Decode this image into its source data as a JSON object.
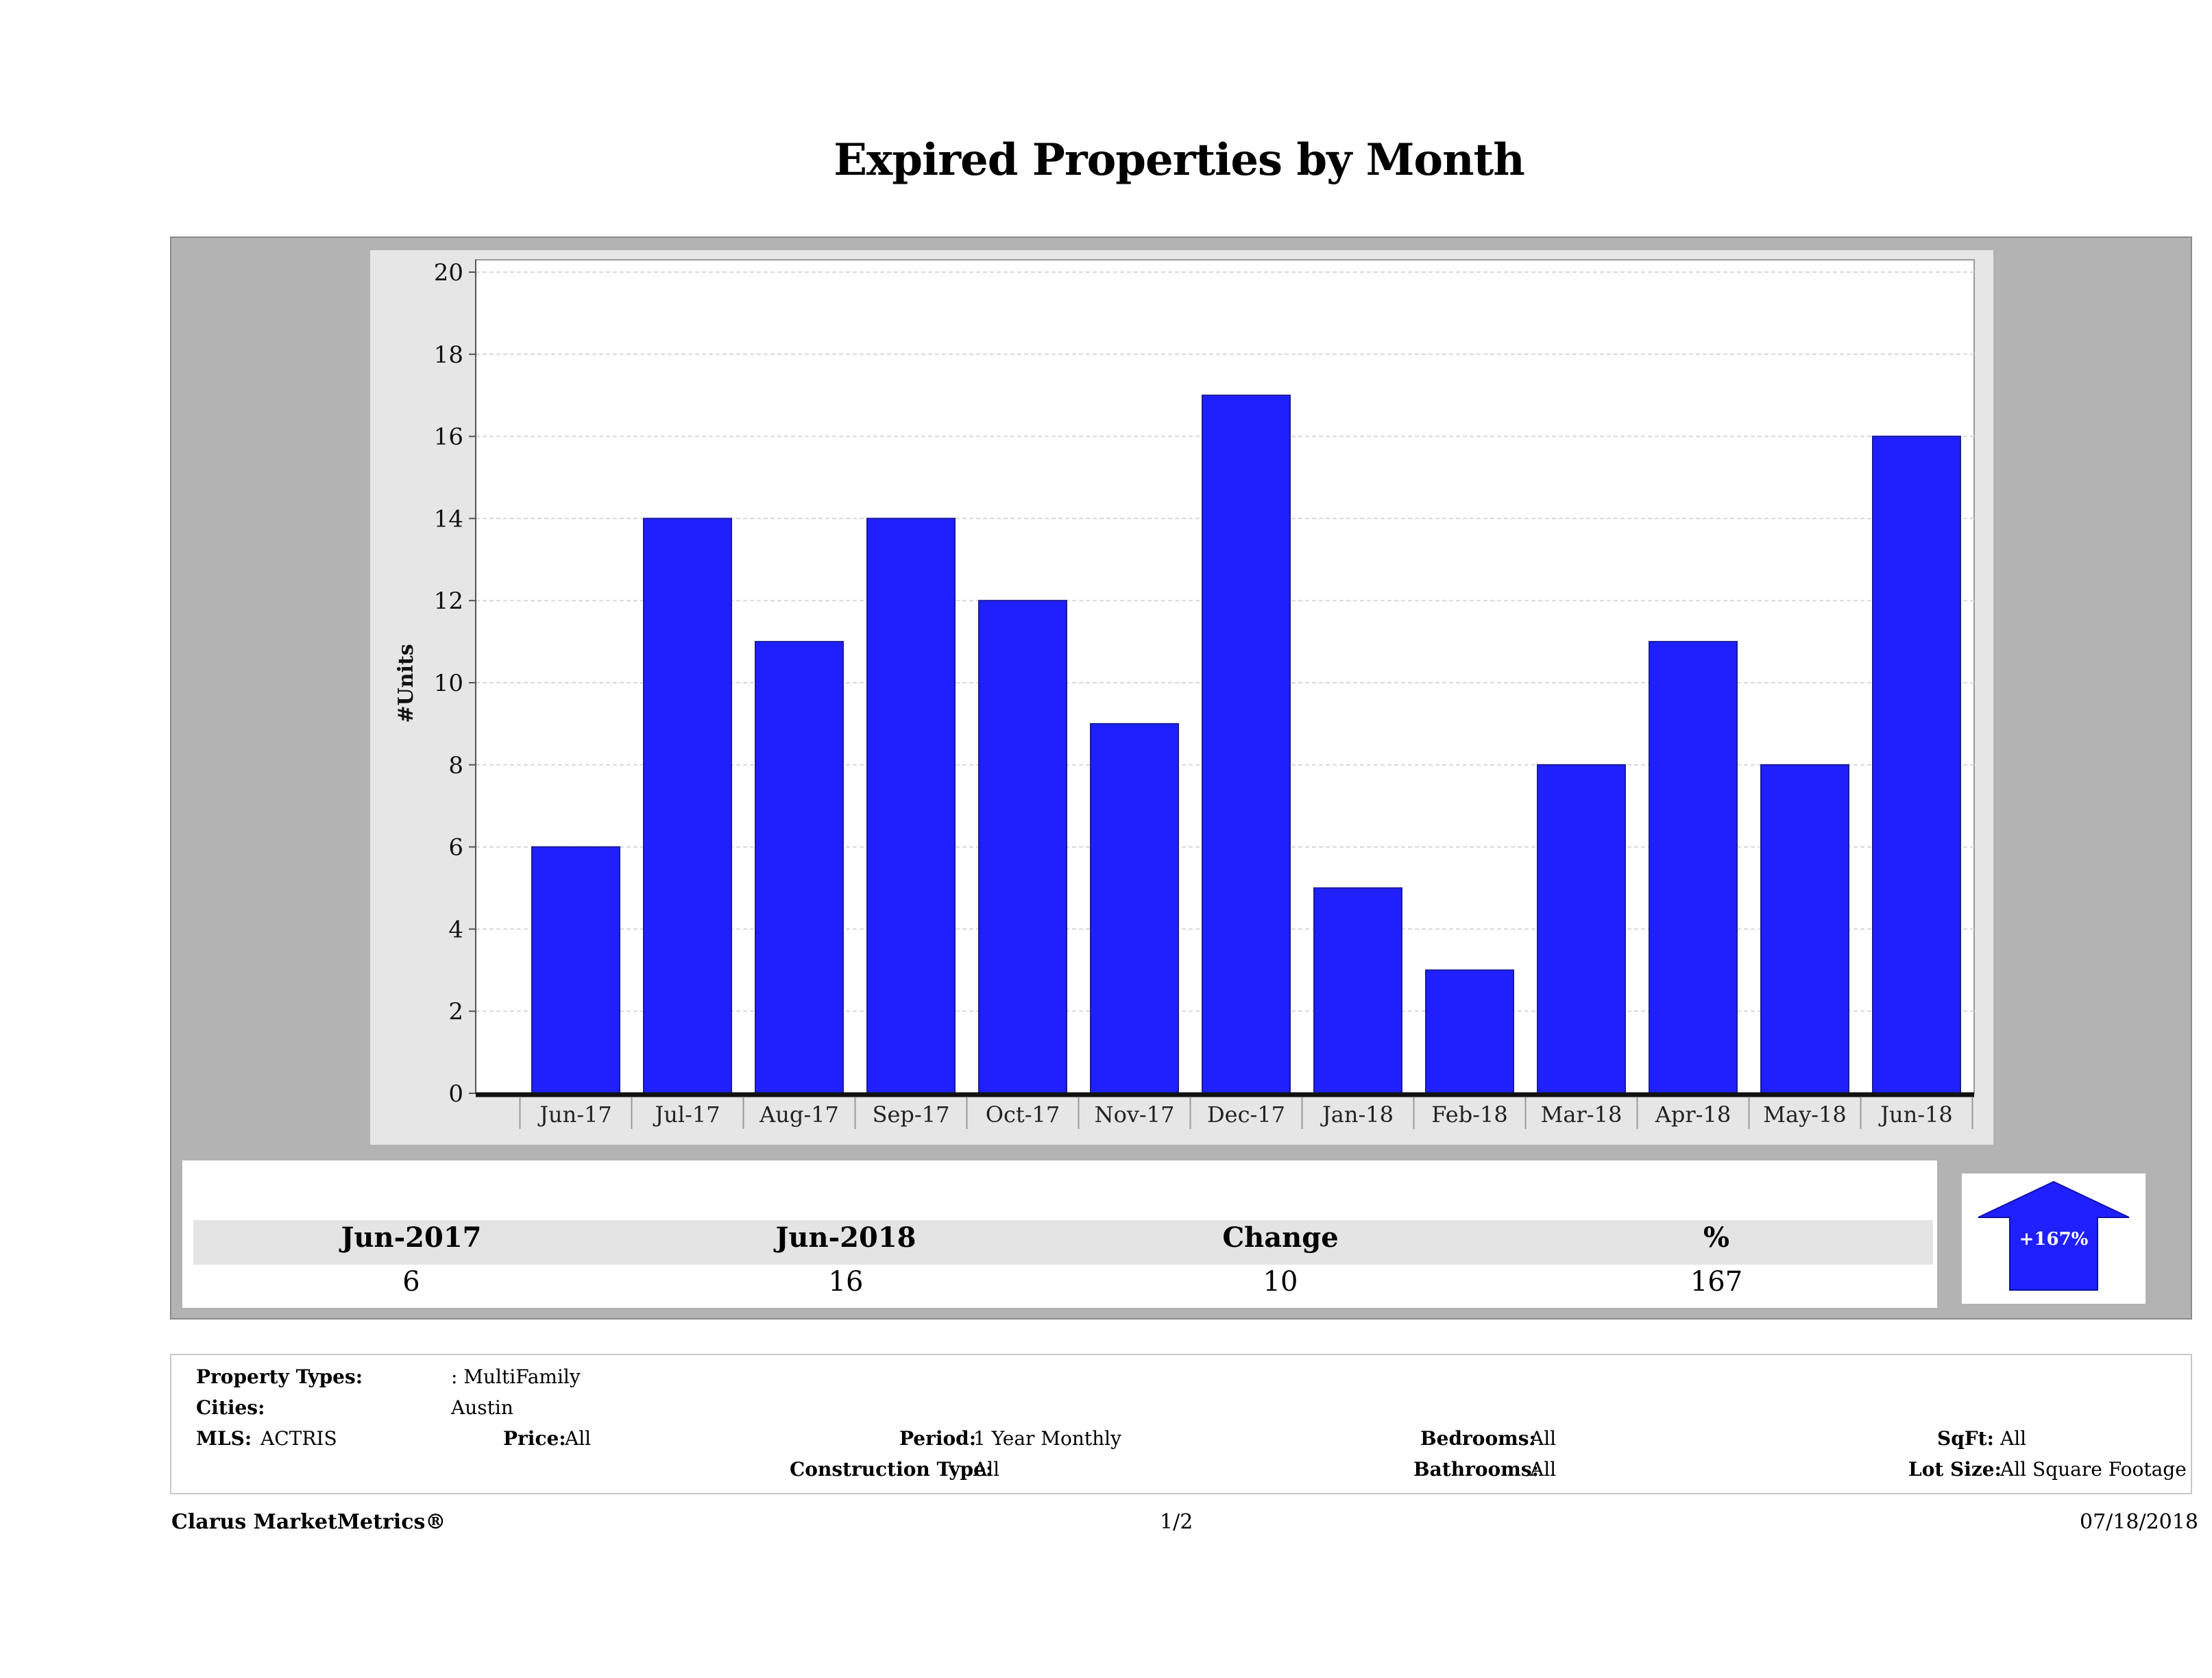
{
  "page": {
    "title": "Expired Properties by Month"
  },
  "chart_data": {
    "type": "bar",
    "title": "Expired Properties by Month",
    "xlabel": "",
    "ylabel": "#Units",
    "ylim": [
      0,
      20
    ],
    "yticks": [
      0,
      2,
      4,
      6,
      8,
      10,
      12,
      14,
      16,
      18,
      20
    ],
    "grid": true,
    "bar_color": "#2020ff",
    "categories": [
      "Jun-17",
      "Jul-17",
      "Aug-17",
      "Sep-17",
      "Oct-17",
      "Nov-17",
      "Dec-17",
      "Jan-18",
      "Feb-18",
      "Mar-18",
      "Apr-18",
      "May-18",
      "Jun-18"
    ],
    "values": [
      6,
      14,
      11,
      14,
      12,
      9,
      17,
      5,
      3,
      8,
      11,
      8,
      16
    ]
  },
  "summary": {
    "headers": [
      "Jun-2017",
      "Jun-2018",
      "Change",
      "%"
    ],
    "values": [
      "6",
      "16",
      "10",
      "167"
    ],
    "arrow_label": "+167%",
    "arrow_color": "#2020ff",
    "arrow_direction": "up"
  },
  "filters": {
    "property_types_label": "Property Types:",
    "property_types_value": ": MultiFamily",
    "cities_label": "Cities:",
    "cities_value": "Austin",
    "mls_label": "MLS:",
    "mls_value": "ACTRIS",
    "price_label": "Price:",
    "price_value": "All",
    "period_label": "Period:",
    "period_value": "1 Year Monthly",
    "construction_label": "Construction Type:",
    "construction_value": "All",
    "bedrooms_label": "Bedrooms:",
    "bedrooms_value": "All",
    "bathrooms_label": "Bathrooms:",
    "bathrooms_value": "All",
    "sqft_label": "SqFt:",
    "sqft_value": "All",
    "lotsize_label": "Lot Size:",
    "lotsize_value": "All Square Footage"
  },
  "footer": {
    "brand": "Clarus MarketMetrics®",
    "page": "1/2",
    "date": "07/18/2018"
  }
}
